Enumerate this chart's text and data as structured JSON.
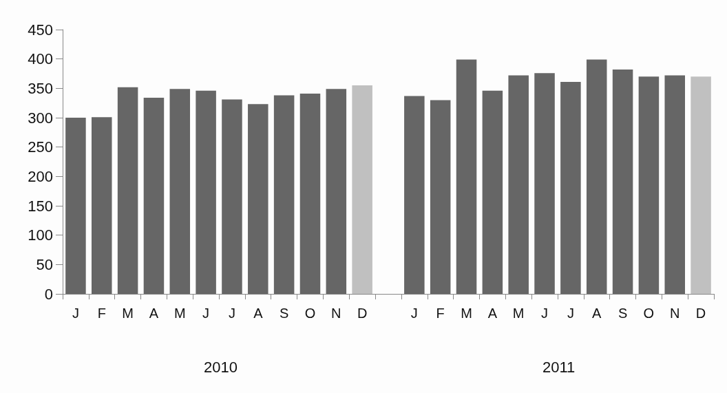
{
  "chart_data": {
    "type": "bar",
    "categories": [
      "J",
      "F",
      "M",
      "A",
      "M",
      "J",
      "J",
      "A",
      "S",
      "O",
      "N",
      "D",
      null,
      "J",
      "F",
      "M",
      "A",
      "M",
      "J",
      "J",
      "A",
      "S",
      "O",
      "N",
      "D"
    ],
    "values": [
      300,
      301,
      352,
      334,
      349,
      346,
      331,
      323,
      338,
      341,
      349,
      355,
      null,
      337,
      330,
      399,
      346,
      372,
      376,
      361,
      399,
      382,
      370,
      372,
      370
    ],
    "colors": [
      "#666666",
      "#666666",
      "#666666",
      "#666666",
      "#666666",
      "#666666",
      "#666666",
      "#666666",
      "#666666",
      "#666666",
      "#666666",
      "#c0c0c0",
      null,
      "#666666",
      "#666666",
      "#666666",
      "#666666",
      "#666666",
      "#666666",
      "#666666",
      "#666666",
      "#666666",
      "#666666",
      "#666666",
      "#c0c0c0"
    ],
    "ylim": [
      0,
      450
    ],
    "yticks": [
      0,
      50,
      100,
      150,
      200,
      250,
      300,
      350,
      400,
      450
    ],
    "annotations": [
      "2010",
      "2011"
    ]
  }
}
